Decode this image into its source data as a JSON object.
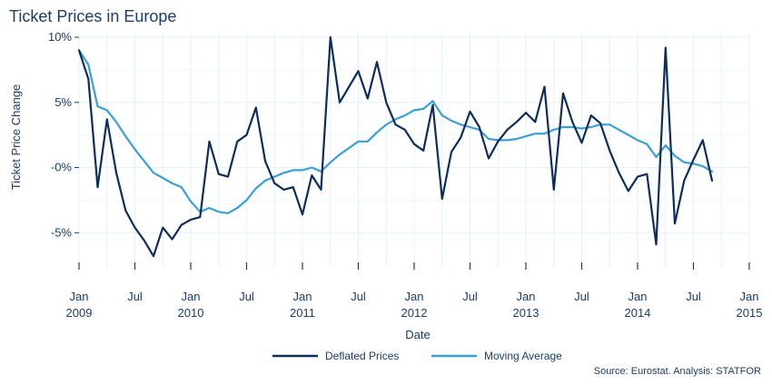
{
  "chart_data": {
    "type": "line",
    "title": "Ticket Prices in Europe",
    "xlabel": "Date",
    "ylabel": "Ticket Price Change",
    "source": "Source: Eurostat. Analysis: STATFOR",
    "ylim": [
      -7,
      10
    ],
    "xlim": [
      "2009-01",
      "2015-01"
    ],
    "yticks": [
      {
        "value": 10,
        "label": "10%"
      },
      {
        "value": 5,
        "label": "5%"
      },
      {
        "value": 0,
        "label": "-0%"
      },
      {
        "value": -5,
        "label": "-5%"
      }
    ],
    "xticks": [
      {
        "date": "2009-01",
        "label": "Jan",
        "year": "2009"
      },
      {
        "date": "2009-07",
        "label": "Jul",
        "year": ""
      },
      {
        "date": "2010-01",
        "label": "Jan",
        "year": "2010"
      },
      {
        "date": "2010-07",
        "label": "Jul",
        "year": ""
      },
      {
        "date": "2011-01",
        "label": "Jan",
        "year": "2011"
      },
      {
        "date": "2011-07",
        "label": "Jul",
        "year": ""
      },
      {
        "date": "2012-01",
        "label": "Jan",
        "year": "2012"
      },
      {
        "date": "2012-07",
        "label": "Jul",
        "year": ""
      },
      {
        "date": "2013-01",
        "label": "Jan",
        "year": "2013"
      },
      {
        "date": "2013-07",
        "label": "Jul",
        "year": ""
      },
      {
        "date": "2014-01",
        "label": "Jan",
        "year": "2014"
      },
      {
        "date": "2014-07",
        "label": "Jul",
        "year": ""
      },
      {
        "date": "2015-01",
        "label": "Jan",
        "year": "2015"
      }
    ],
    "grid": true,
    "legend_position": "bottom",
    "x": [
      "2009-01",
      "2009-02",
      "2009-03",
      "2009-04",
      "2009-05",
      "2009-06",
      "2009-07",
      "2009-08",
      "2009-09",
      "2009-10",
      "2009-11",
      "2009-12",
      "2010-01",
      "2010-02",
      "2010-03",
      "2010-04",
      "2010-05",
      "2010-06",
      "2010-07",
      "2010-08",
      "2010-09",
      "2010-10",
      "2010-11",
      "2010-12",
      "2011-01",
      "2011-02",
      "2011-03",
      "2011-04",
      "2011-05",
      "2011-06",
      "2011-07",
      "2011-08",
      "2011-09",
      "2011-10",
      "2011-11",
      "2011-12",
      "2012-01",
      "2012-02",
      "2012-03",
      "2012-04",
      "2012-05",
      "2012-06",
      "2012-07",
      "2012-08",
      "2012-09",
      "2012-10",
      "2012-11",
      "2012-12",
      "2013-01",
      "2013-02",
      "2013-03",
      "2013-04",
      "2013-05",
      "2013-06",
      "2013-07",
      "2013-08",
      "2013-09",
      "2013-10",
      "2013-11",
      "2013-12",
      "2014-01",
      "2014-02",
      "2014-03",
      "2014-04",
      "2014-05",
      "2014-06",
      "2014-07",
      "2014-08",
      "2014-09"
    ],
    "series": [
      {
        "name": "Deflated Prices",
        "color": "#0d2d5a",
        "values": [
          9.0,
          6.8,
          -1.5,
          3.7,
          -0.4,
          -3.3,
          -4.6,
          -5.6,
          -6.8,
          -4.6,
          -5.5,
          -4.4,
          -4.0,
          -3.8,
          2.0,
          -0.5,
          -0.7,
          2.0,
          2.5,
          4.6,
          0.5,
          -1.2,
          -1.7,
          -1.5,
          -3.6,
          -0.6,
          -1.7,
          10.0,
          5.0,
          6.2,
          7.4,
          5.3,
          8.1,
          5.0,
          3.3,
          2.9,
          1.8,
          1.3,
          4.8,
          -2.4,
          1.2,
          2.3,
          4.3,
          3.1,
          0.7,
          2.0,
          2.9,
          3.5,
          4.2,
          3.5,
          6.2,
          -1.7,
          5.7,
          3.5,
          1.9,
          4.0,
          3.4,
          1.3,
          -0.4,
          -1.8,
          -0.7,
          -0.5,
          -5.9,
          9.2,
          -4.3,
          -1.0,
          0.6,
          2.1,
          -1.0
        ]
      },
      {
        "name": "Moving Average",
        "color": "#3aa0d4",
        "values": [
          9.0,
          7.9,
          4.7,
          4.4,
          3.5,
          2.4,
          1.4,
          0.5,
          -0.4,
          -0.8,
          -1.2,
          -1.5,
          -2.6,
          -3.4,
          -3.1,
          -3.4,
          -3.5,
          -3.1,
          -2.5,
          -1.6,
          -1.0,
          -0.7,
          -0.4,
          -0.2,
          -0.2,
          0.0,
          -0.3,
          0.4,
          1.0,
          1.5,
          2.0,
          2.0,
          2.7,
          3.3,
          3.7,
          4.0,
          4.4,
          4.5,
          5.1,
          4.0,
          3.6,
          3.3,
          3.1,
          2.9,
          2.2,
          2.1,
          2.1,
          2.2,
          2.4,
          2.6,
          2.6,
          2.9,
          3.1,
          3.1,
          3.0,
          3.1,
          3.3,
          3.3,
          2.9,
          2.5,
          2.1,
          1.8,
          0.8,
          1.7,
          0.9,
          0.4,
          0.3,
          0.1,
          -0.3
        ]
      }
    ]
  }
}
